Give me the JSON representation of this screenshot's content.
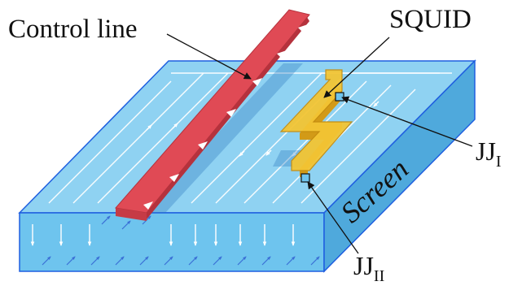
{
  "labels": {
    "control_line": "Control line",
    "squid": "SQUID",
    "jj1_main": "JJ",
    "jj1_sub": "I",
    "jj2_main": "JJ",
    "jj2_sub": "II",
    "screen": "Screen"
  },
  "colors": {
    "screen_top": "#8fd2f2",
    "screen_front": "#6ec4ee",
    "screen_side": "#4fa9dc",
    "screen_edge": "#1f5fe0",
    "control_line": "#e04a55",
    "control_line_dark": "#b5323d",
    "squid": "#f3c534",
    "squid_dark": "#d29a17",
    "current_lines": "#ffffff",
    "front_arrows": "#ffffff",
    "field_arrows": "#3a6fd6",
    "text": "#111111"
  },
  "icons": {
    "current_arrow": "arrow-head-icon",
    "field_arrow": "down-arrow-icon"
  }
}
